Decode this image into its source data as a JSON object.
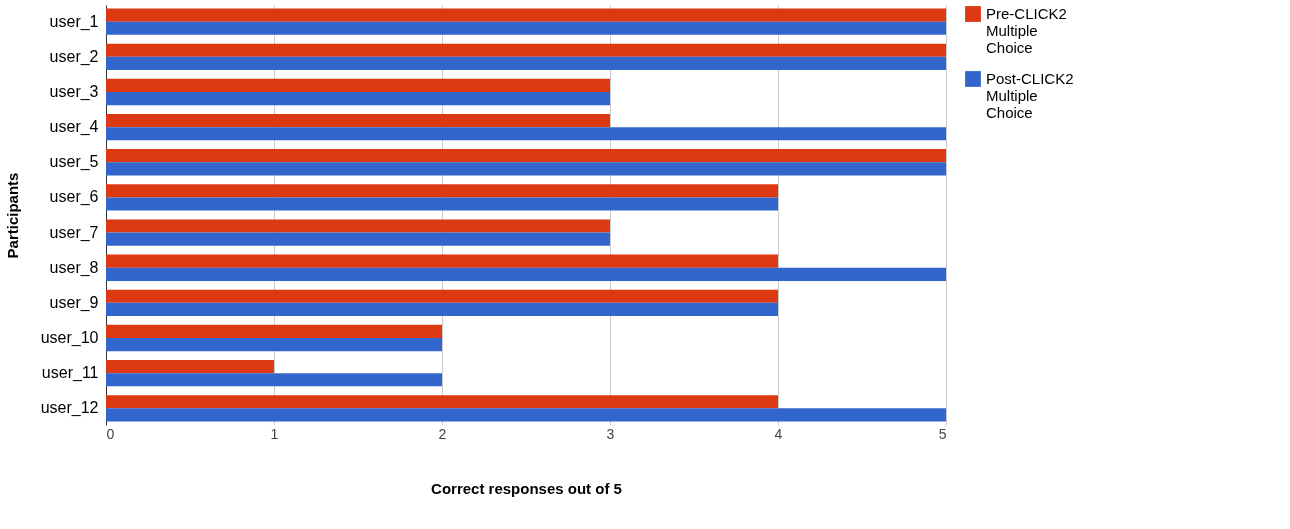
{
  "chart_data": {
    "type": "bar",
    "orientation": "horizontal",
    "xlabel": "Correct responses out of 5",
    "ylabel": "Participants",
    "categories": [
      "user_1",
      "user_2",
      "user_3",
      "user_4",
      "user_5",
      "user_6",
      "user_7",
      "user_8",
      "user_9",
      "user_10",
      "user_11",
      "user_12"
    ],
    "series": [
      {
        "name": "Pre-CLICK2 Multiple Choice",
        "color": "#dc3912",
        "values": [
          5,
          5,
          3,
          3,
          5,
          4,
          3,
          4,
          4,
          2,
          1,
          4
        ]
      },
      {
        "name": "Post-CLICK2 Multiple Choice",
        "color": "#3366cc",
        "values": [
          5,
          5,
          3,
          5,
          5,
          4,
          3,
          5,
          4,
          2,
          2,
          5
        ]
      }
    ],
    "xlim": [
      0,
      5
    ],
    "xticks": [
      0,
      1,
      2,
      3,
      4,
      5
    ],
    "grid": "x",
    "legend": "top right"
  }
}
